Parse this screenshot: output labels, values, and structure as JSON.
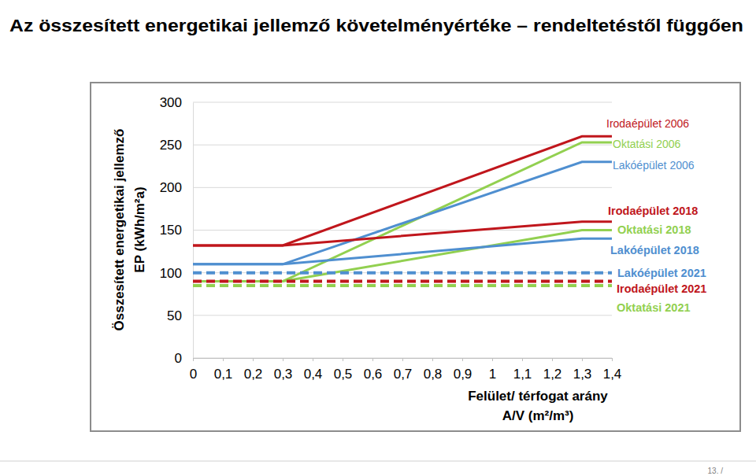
{
  "chart_data": {
    "type": "line",
    "title": "Az összesített energetikai jellemző  követelményértéke – rendeltetéstől függően",
    "x_label": [
      "Felület/ térfogat arány",
      "A/V (m²/m³)"
    ],
    "y_label": [
      "Összesített energetikai jellemző",
      "EP (kWh/m²a)"
    ],
    "annotations": [
      "13. /"
    ],
    "x": [
      0,
      0.3,
      1.3,
      1.4
    ],
    "xlim": [
      0,
      1.4
    ],
    "ylim": [
      0,
      300
    ],
    "xticks": [
      0,
      {
        "value": 0.1,
        "label": "0,1"
      },
      {
        "value": 0.2,
        "label": "0,2"
      },
      {
        "value": 0.3,
        "label": "0,3"
      },
      {
        "value": 0.4,
        "label": "0,4"
      },
      {
        "value": 0.5,
        "label": "0,5"
      },
      {
        "value": 0.6,
        "label": "0,6"
      },
      {
        "value": 0.7,
        "label": "0,7"
      },
      {
        "value": 0.8,
        "label": "0,8"
      },
      {
        "value": 0.9,
        "label": "0,9"
      },
      1,
      {
        "value": 1.1,
        "label": "1,1"
      },
      {
        "value": 1.2,
        "label": "1,2"
      },
      {
        "value": 1.3,
        "label": "1,3"
      },
      {
        "value": 1.4,
        "label": "1,4"
      }
    ],
    "yticks": [
      0,
      50,
      100,
      150,
      200,
      250,
      300
    ],
    "grid": true,
    "legend": "right",
    "series": [
      {
        "name": "Irodaépület 2006",
        "color": "#c0161c",
        "line_style": "solid",
        "values": [
          132,
          132,
          260,
          260
        ]
      },
      {
        "name": "Oktatási 2006",
        "color": "#92d050",
        "line_style": "solid",
        "values": [
          90,
          90,
          253,
          253
        ]
      },
      {
        "name": "Lakóépület 2006",
        "color": "#4f8fd0",
        "line_style": "solid",
        "values": [
          110,
          110,
          230,
          230
        ]
      },
      {
        "name": "Irodaépület 2018",
        "color": "#c0161c",
        "line_style": "solid",
        "values": [
          132,
          132,
          160,
          160
        ]
      },
      {
        "name": "Oktatási 2018",
        "color": "#92d050",
        "line_style": "solid",
        "values": [
          90,
          90,
          150,
          150
        ]
      },
      {
        "name": "Lakóépület 2018",
        "color": "#4f8fd0",
        "line_style": "solid",
        "values": [
          110,
          110,
          140,
          140
        ]
      },
      {
        "name": "Lakóépület 2021",
        "color": "#4f8fd0",
        "line_style": "dashed",
        "values": [
          100,
          100,
          100,
          100
        ]
      },
      {
        "name": "Irodaépület 2021",
        "color": "#c0161c",
        "line_style": "dashed",
        "values": [
          90,
          90,
          90,
          90
        ]
      },
      {
        "name": "Oktatási 2021",
        "color": "#92d050",
        "line_style": "dashed",
        "values": [
          85,
          85,
          85,
          85
        ]
      }
    ]
  }
}
